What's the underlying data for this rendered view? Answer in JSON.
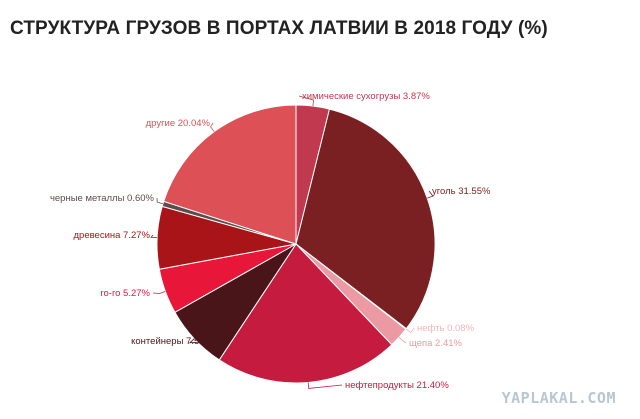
{
  "chart_data": {
    "type": "pie",
    "title": "СТРУКТУРА ГРУЗОВ В ПОРТАХ ЛАТВИИ В 2018 ГОДУ (%)",
    "slices": [
      {
        "label": "химические сухогрузы",
        "value": 3.87,
        "display": "химические сухогрузы 3.87%",
        "color": "#c0394f"
      },
      {
        "label": "уголь",
        "value": 31.55,
        "display": "уголь 31.55%",
        "color": "#7a1f22"
      },
      {
        "label": "нефть",
        "value": 0.08,
        "display": "нефть 0.08%",
        "color": "#f2b6bb"
      },
      {
        "label": "щепа",
        "value": 2.41,
        "display": "щепа 2.41%",
        "color": "#eb99a3"
      },
      {
        "label": "нефтепродукты",
        "value": 21.4,
        "display": "нефтепродукты 21.40%",
        "color": "#c51b3f"
      },
      {
        "label": "контейнеры",
        "value": 7.52,
        "display": "контейнеры 7.52%",
        "color": "#4a1519"
      },
      {
        "label": "ro-ro",
        "value": 5.27,
        "display": "ro-ro 5.27%",
        "color": "#e8173a"
      },
      {
        "label": "древесина",
        "value": 7.27,
        "display": "древесина 7.27%",
        "color": "#a81418"
      },
      {
        "label": "черные металлы",
        "value": 0.6,
        "display": "черные металлы 0.60%",
        "color": "#5e4b4c"
      },
      {
        "label": "другие",
        "value": 20.04,
        "display": "другие 20.04%",
        "color": "#dc5056"
      }
    ]
  },
  "watermark": "YAPLAKAL.COM"
}
